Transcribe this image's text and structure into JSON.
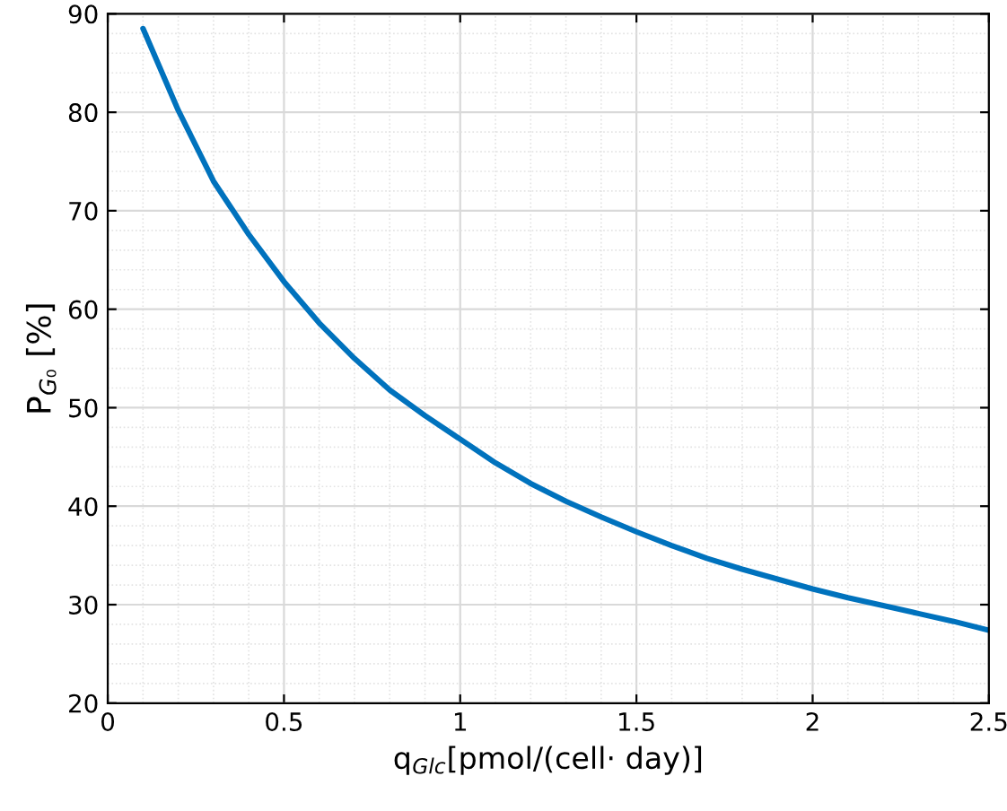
{
  "chart_data": {
    "type": "line",
    "xlabel": "q$_{Glc}$[pmol/(cell· day)]",
    "ylabel": "P$_{G₀}$ [%]",
    "xlim": [
      0,
      2.5
    ],
    "ylim": [
      20,
      90
    ],
    "xticks": [
      0,
      0.5,
      1,
      1.5,
      2,
      2.5
    ],
    "yticks": [
      20,
      30,
      40,
      50,
      60,
      70,
      80,
      90
    ],
    "grid": true,
    "series": [
      {
        "color": "#0072bd",
        "x": [
          0.1,
          0.2,
          0.3,
          0.4,
          0.5,
          0.6,
          0.7,
          0.8,
          0.9,
          1.0,
          1.1,
          1.2,
          1.3,
          1.4,
          1.5,
          1.6,
          1.7,
          1.8,
          1.9,
          2.0,
          2.1,
          2.2,
          2.3,
          2.4,
          2.5
        ],
        "values": [
          88.5,
          80.2,
          73.0,
          67.6,
          62.8,
          58.6,
          55.0,
          51.8,
          49.2,
          46.8,
          44.4,
          42.3,
          40.5,
          38.9,
          37.4,
          36.0,
          34.7,
          33.6,
          32.6,
          31.6,
          30.7,
          29.9,
          29.1,
          28.3,
          27.4
        ]
      }
    ]
  }
}
